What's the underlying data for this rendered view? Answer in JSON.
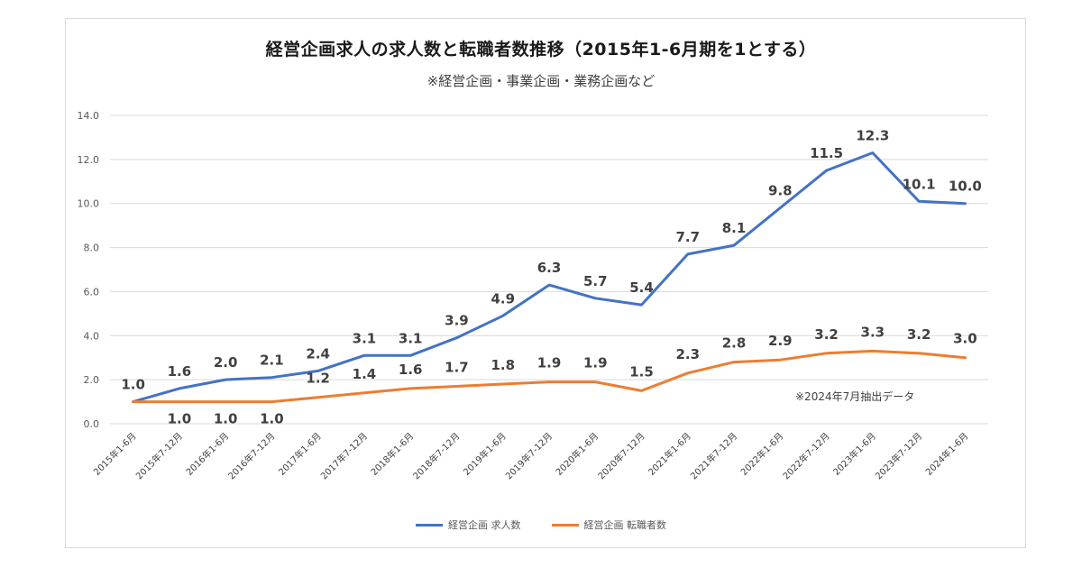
{
  "chart_data": {
    "type": "line",
    "title": "経営企画求人の求人数と転職者数推移（2015年1-6月期を1とする）",
    "subtitle": "※経営企画・事業企画・業務企画など",
    "note": "※2024年7月抽出データ",
    "categories": [
      "2015年1-6月",
      "2015年7-12月",
      "2016年1-6月",
      "2016年7-12月",
      "2017年1-6月",
      "2017年7-12月",
      "2018年1-6月",
      "2018年7-12月",
      "2019年1-6月",
      "2019年7-12月",
      "2020年1-6月",
      "2020年7-12月",
      "2021年1-6月",
      "2021年7-12月",
      "2022年1-6月",
      "2022年7-12月",
      "2023年1-6月",
      "2023年7-12月",
      "2024年1-6月"
    ],
    "ylim": [
      0,
      14
    ],
    "yticks": [
      "0.0",
      "2.0",
      "4.0",
      "6.0",
      "8.0",
      "10.0",
      "12.0",
      "14.0"
    ],
    "grid": true,
    "legend_position": "bottom",
    "series": [
      {
        "name": "経営企画 求人数",
        "color": "#4472c4",
        "values": [
          1.0,
          1.6,
          2.0,
          2.1,
          2.4,
          3.1,
          3.1,
          3.9,
          4.9,
          6.3,
          5.7,
          5.4,
          7.7,
          8.1,
          9.8,
          11.5,
          12.3,
          10.1,
          10.0
        ],
        "labels": [
          "1.0",
          "1.6",
          "2.0",
          "2.1",
          "2.4",
          "3.1",
          "3.1",
          "3.9",
          "4.9",
          "6.3",
          "5.7",
          "5.4",
          "7.7",
          "8.1",
          "9.8",
          "11.5",
          "12.3",
          "10.1",
          "10.0"
        ]
      },
      {
        "name": "経営企画 転職者数",
        "color": "#ed7d31",
        "values": [
          1.0,
          1.0,
          1.0,
          1.0,
          1.2,
          1.4,
          1.6,
          1.7,
          1.8,
          1.9,
          1.9,
          1.5,
          2.3,
          2.8,
          2.9,
          3.2,
          3.3,
          3.2,
          3.0
        ],
        "labels": [
          "",
          "1.0",
          "1.0",
          "1.0",
          "1.2",
          "1.4",
          "1.6",
          "1.7",
          "1.8",
          "1.9",
          "1.9",
          "1.5",
          "2.3",
          "2.8",
          "2.9",
          "3.2",
          "3.3",
          "3.2",
          "3.0"
        ]
      }
    ]
  }
}
